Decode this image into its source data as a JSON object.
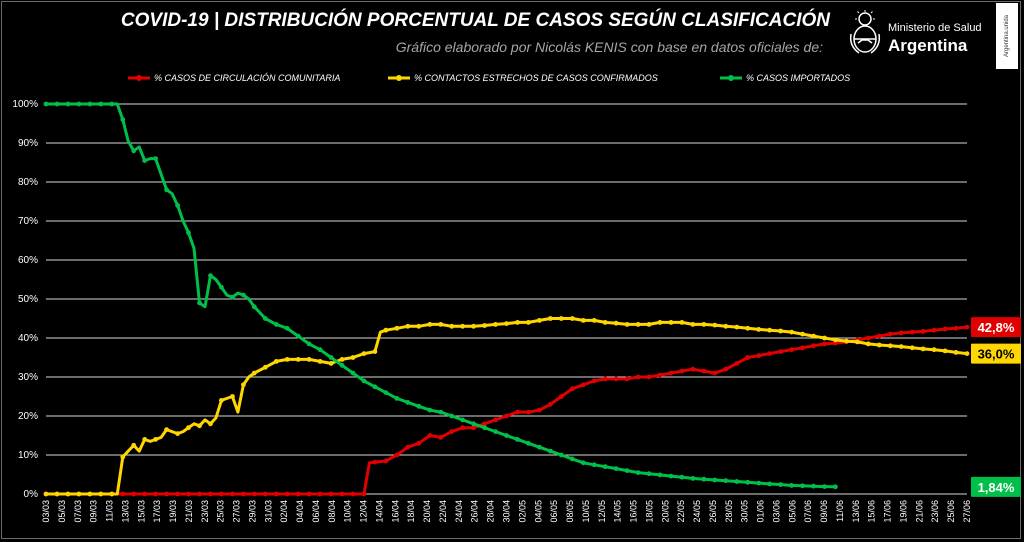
{
  "header": {
    "title": "COVID-19  |  DISTRIBUCIÓN PORCENTUAL DE CASOS SEGÚN CLASIFICACIÓN",
    "subtitle": "Gráfico elaborado por Nicolás KENIS con base en datos oficiales de:",
    "logo_line1": "Ministerio de Salud",
    "logo_line2": "Argentina",
    "side_tag": "Argentina.unida"
  },
  "chart_data": {
    "type": "line",
    "x_start": "03/03",
    "x_end": "27/06",
    "x_labels": [
      "03/03",
      "05/03",
      "07/03",
      "09/03",
      "11/03",
      "13/03",
      "15/03",
      "17/03",
      "19/03",
      "21/03",
      "23/03",
      "25/03",
      "27/03",
      "29/03",
      "31/03",
      "02/04",
      "04/04",
      "06/04",
      "08/04",
      "10/04",
      "12/04",
      "14/04",
      "16/04",
      "18/04",
      "20/04",
      "22/04",
      "24/04",
      "26/04",
      "28/04",
      "30/04",
      "02/05",
      "04/05",
      "06/05",
      "08/05",
      "10/05",
      "12/05",
      "14/05",
      "16/05",
      "18/05",
      "20/05",
      "22/05",
      "24/05",
      "26/05",
      "28/05",
      "30/05",
      "01/06",
      "03/06",
      "05/06",
      "07/06",
      "09/06",
      "11/06",
      "13/06",
      "15/06",
      "17/06",
      "19/06",
      "21/06",
      "23/06",
      "25/06",
      "27/06"
    ],
    "y_ticks": [
      "0%",
      "10%",
      "20%",
      "30%",
      "40%",
      "50%",
      "60%",
      "70%",
      "80%",
      "90%",
      "100%"
    ],
    "ylim": [
      0,
      100
    ],
    "grid": true,
    "legend_position": "top",
    "series": [
      {
        "name": "% CASOS DE CIRCULACIÓN COMUNITARIA",
        "color": "#e00000",
        "end_label": "42,8%",
        "points": [
          [
            0,
            0
          ],
          [
            58,
            0
          ],
          [
            59,
            8
          ],
          [
            62,
            8.5
          ],
          [
            64,
            10
          ],
          [
            66,
            12
          ],
          [
            68,
            13
          ],
          [
            70,
            15
          ],
          [
            72,
            14.5
          ],
          [
            74,
            16
          ],
          [
            76,
            17
          ],
          [
            78,
            17
          ],
          [
            80,
            18
          ],
          [
            82,
            19
          ],
          [
            84,
            20
          ],
          [
            86,
            21
          ],
          [
            88,
            21
          ],
          [
            90,
            21.5
          ],
          [
            92,
            23
          ],
          [
            94,
            25
          ],
          [
            96,
            27
          ],
          [
            98,
            28
          ],
          [
            100,
            29
          ],
          [
            102,
            29.5
          ],
          [
            104,
            29.5
          ],
          [
            106,
            29.5
          ],
          [
            108,
            30
          ],
          [
            110,
            30
          ],
          [
            112,
            30.5
          ],
          [
            114,
            31
          ],
          [
            116,
            31.5
          ],
          [
            118,
            32
          ],
          [
            120,
            31.5
          ],
          [
            122,
            31
          ],
          [
            124,
            32
          ],
          [
            126,
            33.5
          ],
          [
            128,
            35
          ],
          [
            130,
            35.5
          ],
          [
            132,
            36
          ],
          [
            134,
            36.5
          ],
          [
            136,
            37
          ],
          [
            138,
            37.5
          ],
          [
            140,
            38
          ],
          [
            142,
            38.5
          ],
          [
            144,
            38.7
          ],
          [
            146,
            39
          ],
          [
            148,
            39.5
          ],
          [
            150,
            40
          ],
          [
            152,
            40.5
          ],
          [
            154,
            41
          ],
          [
            156,
            41.3
          ],
          [
            158,
            41.5
          ],
          [
            160,
            41.7
          ],
          [
            162,
            42
          ],
          [
            164,
            42.3
          ],
          [
            166,
            42.5
          ],
          [
            168,
            42.8
          ]
        ]
      },
      {
        "name": "% CONTACTOS ESTRECHOS DE CASOS CONFIRMADOS",
        "color": "#ffd700",
        "end_label": "36,0%",
        "points": [
          [
            0,
            0
          ],
          [
            13,
            0
          ],
          [
            14,
            9.5
          ],
          [
            15,
            11
          ],
          [
            16,
            12.5
          ],
          [
            17,
            11
          ],
          [
            18,
            14
          ],
          [
            19,
            13.5
          ],
          [
            20,
            14
          ],
          [
            21,
            14.5
          ],
          [
            22,
            16.5
          ],
          [
            23,
            16
          ],
          [
            24,
            15.5
          ],
          [
            25,
            16
          ],
          [
            26,
            17
          ],
          [
            27,
            18
          ],
          [
            28,
            17.5
          ],
          [
            29,
            19
          ],
          [
            30,
            18
          ],
          [
            31,
            19.5
          ],
          [
            32,
            24
          ],
          [
            33,
            24.5
          ],
          [
            34,
            25
          ],
          [
            35,
            21
          ],
          [
            36,
            28
          ],
          [
            37,
            30
          ],
          [
            38,
            31
          ],
          [
            40,
            32.5
          ],
          [
            42,
            34
          ],
          [
            44,
            34.5
          ],
          [
            46,
            34.5
          ],
          [
            48,
            34.5
          ],
          [
            50,
            34
          ],
          [
            52,
            33.5
          ],
          [
            54,
            34.5
          ],
          [
            56,
            35
          ],
          [
            58,
            36
          ],
          [
            60,
            36.5
          ],
          [
            61,
            41.5
          ],
          [
            62,
            42
          ],
          [
            64,
            42.5
          ],
          [
            66,
            43
          ],
          [
            68,
            43
          ],
          [
            70,
            43.5
          ],
          [
            72,
            43.5
          ],
          [
            74,
            43
          ],
          [
            76,
            43
          ],
          [
            78,
            43
          ],
          [
            80,
            43.2
          ],
          [
            82,
            43.5
          ],
          [
            84,
            43.7
          ],
          [
            86,
            44
          ],
          [
            88,
            44
          ],
          [
            90,
            44.5
          ],
          [
            92,
            45
          ],
          [
            94,
            45
          ],
          [
            96,
            45
          ],
          [
            98,
            44.5
          ],
          [
            100,
            44.5
          ],
          [
            102,
            44
          ],
          [
            104,
            43.8
          ],
          [
            106,
            43.5
          ],
          [
            108,
            43.5
          ],
          [
            110,
            43.5
          ],
          [
            112,
            44
          ],
          [
            114,
            44
          ],
          [
            116,
            44
          ],
          [
            118,
            43.5
          ],
          [
            120,
            43.5
          ],
          [
            122,
            43.3
          ],
          [
            124,
            43
          ],
          [
            126,
            42.8
          ],
          [
            128,
            42.5
          ],
          [
            130,
            42.2
          ],
          [
            132,
            42
          ],
          [
            134,
            41.8
          ],
          [
            136,
            41.5
          ],
          [
            138,
            41
          ],
          [
            140,
            40.5
          ],
          [
            142,
            40
          ],
          [
            144,
            39.5
          ],
          [
            146,
            39.2
          ],
          [
            148,
            39
          ],
          [
            150,
            38.5
          ],
          [
            152,
            38.2
          ],
          [
            154,
            38
          ],
          [
            156,
            37.8
          ],
          [
            158,
            37.5
          ],
          [
            160,
            37.2
          ],
          [
            162,
            37
          ],
          [
            164,
            36.7
          ],
          [
            166,
            36.3
          ],
          [
            168,
            36
          ]
        ]
      },
      {
        "name": "% CASOS IMPORTADOS",
        "color": "#00c04a",
        "end_label": "1,84%",
        "points": [
          [
            0,
            100
          ],
          [
            13,
            100
          ],
          [
            14,
            96
          ],
          [
            15,
            90.5
          ],
          [
            16,
            88
          ],
          [
            17,
            89
          ],
          [
            18,
            85.5
          ],
          [
            19,
            86
          ],
          [
            20,
            86
          ],
          [
            21,
            82
          ],
          [
            22,
            78
          ],
          [
            23,
            77
          ],
          [
            24,
            74
          ],
          [
            25,
            70
          ],
          [
            26,
            67
          ],
          [
            27,
            63
          ],
          [
            28,
            49
          ],
          [
            29,
            48
          ],
          [
            30,
            56
          ],
          [
            31,
            55
          ],
          [
            32,
            53
          ],
          [
            33,
            51
          ],
          [
            34,
            50.5
          ],
          [
            35,
            51.5
          ],
          [
            36,
            51
          ],
          [
            37,
            50
          ],
          [
            38,
            48
          ],
          [
            40,
            45
          ],
          [
            42,
            43.5
          ],
          [
            44,
            42.5
          ],
          [
            46,
            40.5
          ],
          [
            48,
            38.5
          ],
          [
            50,
            37
          ],
          [
            52,
            35
          ],
          [
            54,
            33
          ],
          [
            56,
            31
          ],
          [
            58,
            29
          ],
          [
            60,
            27.5
          ],
          [
            62,
            26
          ],
          [
            64,
            24.5
          ],
          [
            66,
            23.5
          ],
          [
            68,
            22.5
          ],
          [
            70,
            21.5
          ],
          [
            72,
            21
          ],
          [
            74,
            20
          ],
          [
            76,
            19
          ],
          [
            78,
            18
          ],
          [
            80,
            17
          ],
          [
            82,
            16
          ],
          [
            84,
            15
          ],
          [
            86,
            14
          ],
          [
            88,
            13
          ],
          [
            90,
            12
          ],
          [
            92,
            11
          ],
          [
            94,
            10
          ],
          [
            96,
            9
          ],
          [
            98,
            8
          ],
          [
            100,
            7.5
          ],
          [
            102,
            7
          ],
          [
            104,
            6.5
          ],
          [
            106,
            6
          ],
          [
            108,
            5.5
          ],
          [
            110,
            5.2
          ],
          [
            112,
            4.9
          ],
          [
            114,
            4.6
          ],
          [
            116,
            4.3
          ],
          [
            118,
            4
          ],
          [
            120,
            3.8
          ],
          [
            122,
            3.6
          ],
          [
            124,
            3.4
          ],
          [
            126,
            3.2
          ],
          [
            128,
            3
          ],
          [
            130,
            2.8
          ],
          [
            132,
            2.6
          ],
          [
            134,
            2.4
          ],
          [
            136,
            2.2
          ],
          [
            138,
            2.1
          ],
          [
            140,
            2
          ],
          [
            142,
            1.9
          ],
          [
            144,
            1.84
          ]
        ]
      }
    ]
  }
}
